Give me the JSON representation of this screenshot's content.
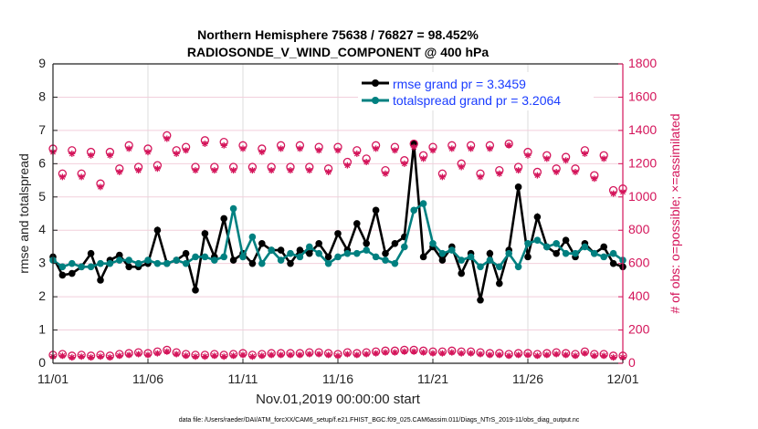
{
  "chart_data": {
    "type": "line",
    "title": [
      "Northern Hemisphere 75638 / 76827 = 98.452%",
      "RADIOSONDE_V_WIND_COMPONENT @ 400 hPa"
    ],
    "xlabel": "Nov.01,2019 00:00:00 start",
    "ylabel": "rmse and totalspread",
    "ylabel_right": "# of obs: o=possible; ×=assimilated",
    "footer": "data file: /Users/raeder/DAI/ATM_forcXX/CAM6_setup/f.e21.FHIST_BGC.f09_025.CAM6assim.011/Diags_NTrS_2019-11/obs_diag_output.nc",
    "x_tick_labels": [
      "11/01",
      "11/06",
      "11/11",
      "11/16",
      "11/21",
      "11/26",
      "12/01"
    ],
    "x_tick_days": [
      0,
      5,
      10,
      15,
      20,
      25,
      30
    ],
    "xlim_days": [
      0,
      30
    ],
    "ylim": [
      0,
      9
    ],
    "y_ticks": [
      0,
      1,
      2,
      3,
      4,
      5,
      6,
      7,
      8,
      9
    ],
    "ylim_right": [
      0,
      1800
    ],
    "y_ticks_right": [
      0,
      200,
      400,
      600,
      800,
      1000,
      1200,
      1400,
      1600,
      1800
    ],
    "x_step_days": 0.5,
    "legend": [
      "rmse grand pr = 3.3459",
      "totalspread grand pr = 3.2064"
    ],
    "legend_placement": "top-right",
    "grid": true,
    "colors": {
      "rmse": "#000000",
      "spread": "#008080",
      "obs": "#d4145a",
      "legend_text": "#1a3cff"
    },
    "series": [
      {
        "name": "rmse",
        "axis": "left",
        "values": [
          3.2,
          2.65,
          2.7,
          2.9,
          3.3,
          2.5,
          3.1,
          3.25,
          2.9,
          2.9,
          3.0,
          4.0,
          3.0,
          3.1,
          3.3,
          2.2,
          3.9,
          3.2,
          4.35,
          3.1,
          3.3,
          3.0,
          3.6,
          3.4,
          3.4,
          3.0,
          3.4,
          3.3,
          3.6,
          3.2,
          3.9,
          3.4,
          4.2,
          3.6,
          4.6,
          3.3,
          3.6,
          3.8,
          6.6,
          3.2,
          3.5,
          3.1,
          3.5,
          2.7,
          3.3,
          1.9,
          3.3,
          2.4,
          3.4,
          5.3,
          3.2,
          4.4,
          3.5,
          3.3,
          3.7,
          3.2,
          3.6,
          3.3,
          3.5,
          3.0,
          2.9
        ]
      },
      {
        "name": "totalspread",
        "axis": "left",
        "values": [
          3.1,
          2.9,
          3.0,
          2.9,
          2.9,
          3.0,
          3.0,
          3.1,
          3.1,
          3.0,
          3.1,
          3.0,
          3.0,
          3.1,
          3.0,
          3.2,
          3.2,
          3.1,
          3.2,
          4.65,
          3.2,
          3.8,
          3.0,
          3.4,
          3.1,
          3.3,
          3.2,
          3.5,
          3.3,
          3.0,
          3.2,
          3.3,
          3.3,
          3.4,
          3.2,
          3.1,
          3.0,
          3.5,
          4.6,
          4.8,
          3.6,
          3.3,
          3.4,
          3.1,
          3.2,
          2.9,
          3.1,
          2.9,
          3.3,
          2.9,
          3.6,
          3.7,
          3.5,
          3.6,
          3.3,
          3.3,
          3.5,
          3.3,
          3.2,
          3.3,
          3.1
        ]
      },
      {
        "name": "obs possible",
        "axis": "right",
        "values": [
          1290,
          1140,
          1280,
          1140,
          1270,
          1080,
          1270,
          1170,
          1310,
          1180,
          1290,
          1190,
          1370,
          1280,
          1300,
          1180,
          1340,
          1180,
          1330,
          1180,
          1310,
          1180,
          1290,
          1180,
          1310,
          1180,
          1310,
          1180,
          1300,
          1170,
          1300,
          1210,
          1280,
          1230,
          1310,
          1160,
          1300,
          1220,
          1320,
          1250,
          1300,
          1140,
          1310,
          1200,
          1310,
          1140,
          1310,
          1160,
          1320,
          1180,
          1270,
          1150,
          1250,
          1170,
          1240,
          1170,
          1280,
          1130,
          1250,
          1040,
          1050
        ]
      },
      {
        "name": "obs assimilated",
        "axis": "right",
        "values": [
          1270,
          1120,
          1260,
          1120,
          1250,
          1060,
          1250,
          1150,
          1290,
          1160,
          1270,
          1170,
          1350,
          1260,
          1280,
          1160,
          1320,
          1160,
          1310,
          1160,
          1290,
          1160,
          1270,
          1160,
          1290,
          1160,
          1290,
          1160,
          1280,
          1150,
          1280,
          1190,
          1260,
          1210,
          1290,
          1140,
          1280,
          1200,
          1300,
          1230,
          1280,
          1120,
          1290,
          1180,
          1290,
          1120,
          1290,
          1140,
          1310,
          1160,
          1250,
          1130,
          1230,
          1150,
          1220,
          1150,
          1260,
          1110,
          1230,
          1020,
          1030
        ]
      },
      {
        "name": "obs possible (low)",
        "axis": "right",
        "values": [
          50,
          55,
          45,
          50,
          45,
          50,
          45,
          55,
          60,
          65,
          60,
          70,
          80,
          65,
          55,
          50,
          50,
          55,
          50,
          55,
          60,
          50,
          55,
          60,
          60,
          60,
          60,
          65,
          65,
          60,
          55,
          65,
          60,
          65,
          70,
          75,
          75,
          80,
          80,
          75,
          70,
          70,
          75,
          70,
          70,
          65,
          60,
          60,
          55,
          60,
          60,
          55,
          60,
          65,
          60,
          55,
          70,
          55,
          55,
          45,
          45
        ]
      },
      {
        "name": "obs assimilated (low)",
        "axis": "right",
        "values": [
          40,
          45,
          35,
          40,
          35,
          40,
          35,
          45,
          50,
          55,
          50,
          60,
          70,
          55,
          45,
          40,
          40,
          45,
          40,
          45,
          50,
          40,
          45,
          50,
          50,
          50,
          50,
          55,
          55,
          50,
          45,
          55,
          50,
          55,
          60,
          65,
          65,
          70,
          70,
          65,
          60,
          60,
          65,
          60,
          60,
          55,
          50,
          50,
          45,
          50,
          50,
          45,
          50,
          55,
          50,
          45,
          60,
          45,
          45,
          35,
          35
        ]
      }
    ]
  }
}
